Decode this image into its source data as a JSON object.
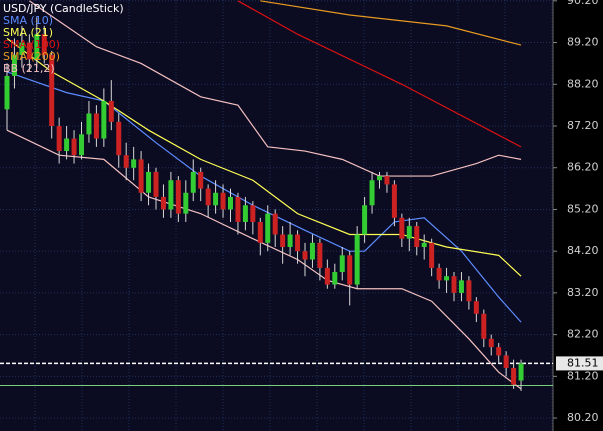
{
  "chart_data": {
    "type": "candlestick",
    "title": "USD/JPY (CandleStick)",
    "up_color": "#33cc33",
    "down_color": "#cc2222",
    "wick_color": "#d8d8d8",
    "open": [
      87.6,
      88.4,
      88.9,
      89.2,
      88.8,
      89.4,
      88.9,
      87.2,
      86.6,
      86.9,
      86.5,
      87.0,
      87.5,
      86.9,
      87.8,
      87.3,
      86.5,
      86.2,
      86.4,
      85.6,
      86.1,
      85.5,
      85.2,
      85.9,
      85.1,
      85.6,
      86.1,
      85.7,
      85.3,
      85.6,
      85.2,
      85.5,
      84.9,
      85.3,
      84.9,
      84.4,
      85.1,
      84.6,
      84.3,
      84.6,
      84.2,
      84.0,
      84.4,
      83.8,
      83.4,
      83.7,
      84.1,
      83.4,
      84.6,
      85.3,
      85.9,
      86.0,
      85.8,
      85.0,
      84.5,
      84.8,
      84.3,
      84.4,
      83.8,
      83.5,
      83.6,
      83.2,
      83.5,
      83.0,
      82.7,
      82.1,
      81.9,
      81.7,
      81.4,
      81.1
    ],
    "high": [
      88.7,
      89.3,
      89.6,
      89.4,
      89.8,
      89.6,
      89.0,
      87.4,
      87.2,
      87.1,
      87.3,
      87.8,
      87.7,
      88.1,
      88.3,
      87.5,
      86.8,
      86.7,
      86.6,
      86.3,
      86.2,
      85.8,
      86.1,
      86.0,
      85.9,
      86.4,
      86.2,
      85.8,
      85.9,
      85.8,
      85.7,
      85.6,
      85.5,
      85.4,
      85.0,
      85.3,
      85.2,
      84.8,
      84.9,
      84.7,
      84.4,
      84.6,
      84.5,
      84.0,
      83.9,
      84.3,
      84.2,
      84.8,
      85.5,
      86.1,
      86.1,
      86.1,
      85.9,
      85.1,
      85.0,
      84.9,
      84.6,
      84.5,
      83.9,
      83.8,
      83.7,
      83.7,
      83.6,
      83.1,
      82.8,
      82.2,
      82.0,
      81.8,
      81.6,
      81.6
    ],
    "low": [
      87.1,
      88.1,
      88.6,
      88.5,
      88.6,
      88.7,
      86.9,
      86.3,
      86.4,
      86.3,
      86.4,
      86.8,
      86.7,
      86.7,
      87.1,
      86.2,
      85.9,
      85.9,
      85.4,
      85.3,
      85.2,
      85.0,
      85.0,
      84.9,
      84.9,
      85.4,
      85.4,
      85.0,
      85.1,
      85.0,
      84.9,
      84.6,
      84.7,
      84.6,
      84.1,
      84.2,
      84.3,
      83.9,
      84.1,
      83.9,
      83.6,
      83.8,
      83.5,
      83.3,
      83.3,
      83.5,
      82.9,
      83.3,
      84.4,
      85.1,
      85.7,
      85.6,
      84.8,
      84.3,
      84.2,
      84.1,
      84.0,
      83.6,
      83.3,
      83.2,
      83.0,
      83.0,
      82.8,
      82.5,
      81.9,
      81.7,
      81.5,
      81.2,
      80.9,
      80.85
    ],
    "close": [
      88.4,
      88.9,
      89.2,
      88.8,
      89.4,
      88.9,
      87.2,
      86.6,
      86.9,
      86.5,
      87.0,
      87.5,
      86.9,
      87.8,
      87.3,
      86.5,
      86.2,
      86.4,
      85.6,
      86.1,
      85.5,
      85.2,
      85.9,
      85.1,
      85.6,
      86.1,
      85.7,
      85.3,
      85.6,
      85.2,
      85.5,
      84.9,
      85.3,
      84.9,
      84.4,
      85.1,
      84.6,
      84.3,
      84.6,
      84.2,
      84.0,
      84.4,
      83.8,
      83.4,
      83.7,
      84.1,
      83.4,
      84.6,
      85.3,
      85.9,
      86.0,
      85.8,
      85.0,
      84.5,
      84.8,
      84.3,
      84.4,
      83.8,
      83.5,
      83.6,
      83.2,
      83.5,
      83.0,
      82.7,
      82.1,
      81.9,
      81.7,
      81.4,
      81.0,
      81.51
    ],
    "overlays": [
      {
        "name": "SMA (10)",
        "color": "#5c8cff",
        "lines": [
          {
            "x": [
              0,
              8,
              13,
              20,
              26,
              33,
              40,
              46,
              48,
              52,
              56,
              61,
              66,
              69
            ],
            "values": [
              88.5,
              88.0,
              87.8,
              86.8,
              86.0,
              85.3,
              84.7,
              84.2,
              84.2,
              84.9,
              85.0,
              84.2,
              83.1,
              82.5
            ]
          }
        ]
      },
      {
        "name": "SMA (21)",
        "color": "#ffff55",
        "lines": [
          {
            "x": [
              0,
              6,
              13,
              19,
              26,
              33,
              39,
              46,
              53,
              59,
              66,
              69
            ],
            "values": [
              89.3,
              88.5,
              87.8,
              87.1,
              86.4,
              85.9,
              85.1,
              84.6,
              84.6,
              84.3,
              84.1,
              83.6
            ]
          }
        ]
      },
      {
        "name": "SMA (100)",
        "color": "#dd1111",
        "lines": [
          {
            "x": [
              31,
              39,
              53,
              69
            ],
            "values": [
              90.2,
              89.4,
              88.2,
              86.7
            ]
          }
        ]
      },
      {
        "name": "SMA (200)",
        "color": "#e89a20",
        "lines": [
          {
            "x": [
              34,
              46,
              59,
              69
            ],
            "values": [
              90.2,
              89.86,
              89.6,
              89.14
            ]
          }
        ]
      },
      {
        "name": "BB (21,2)",
        "color": "#f4c0c0",
        "lines": [
          {
            "x": [
              3,
              12,
              18,
              26,
              31,
              35,
              40,
              45,
              50,
              57,
              63,
              66,
              69
            ],
            "values": [
              90.2,
              89.1,
              88.7,
              87.9,
              87.7,
              86.7,
              86.6,
              86.4,
              86.0,
              86.0,
              86.3,
              86.5,
              86.4
            ]
          },
          {
            "x": [
              0,
              7,
              13,
              19,
              26,
              33,
              39,
              43,
              47,
              53,
              57,
              62,
              66,
              69
            ],
            "values": [
              87.1,
              86.5,
              86.4,
              85.5,
              85.1,
              84.5,
              84.0,
              83.5,
              83.3,
              83.3,
              83.0,
              82.1,
              81.3,
              80.9
            ]
          }
        ]
      }
    ],
    "price_line": {
      "value": 81.51,
      "label": "81.51"
    },
    "ref_line": 80.98,
    "ylim": [
      79.89,
      90.22
    ],
    "yticks": [
      {
        "value": 80.2,
        "label": "80.20"
      },
      {
        "value": 81.2,
        "label": "81.20"
      },
      {
        "value": 82.2,
        "label": "82.20"
      },
      {
        "value": 83.2,
        "label": "83.20"
      },
      {
        "value": 84.2,
        "label": "84.20"
      },
      {
        "value": 85.2,
        "label": "85.20"
      },
      {
        "value": 86.2,
        "label": "86.20"
      },
      {
        "value": 87.2,
        "label": "87.20"
      },
      {
        "value": 88.2,
        "label": "88.20"
      },
      {
        "value": 89.2,
        "label": "89.20"
      },
      {
        "value": 90.2,
        "label": "90.20"
      }
    ],
    "grid": true
  }
}
